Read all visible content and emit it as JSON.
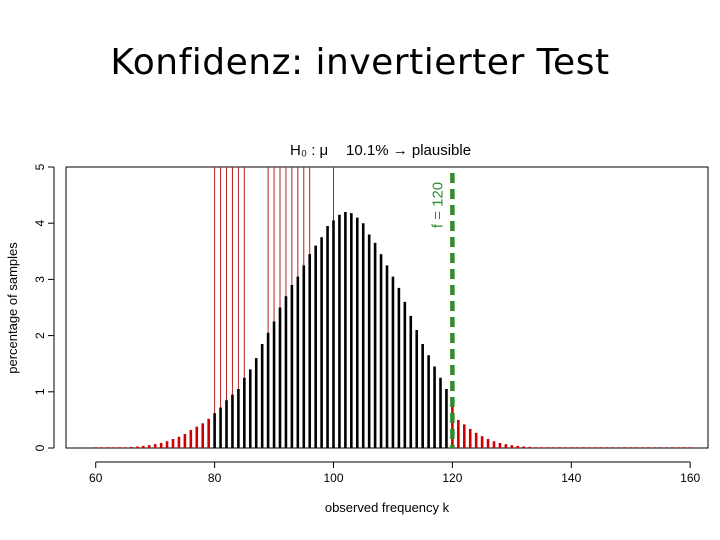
{
  "slide": {
    "title": "Konfidenz: invertierter Test"
  },
  "annotation": {
    "hypothesis": "H₀ : μ",
    "result": "10.1% → plausible"
  },
  "f_marker": {
    "label": "f = 120",
    "x": 120,
    "color": "#2e8b2e"
  },
  "chart_data": {
    "type": "bar",
    "xlabel": "observed frequency k",
    "ylabel": "percentage of samples",
    "xlim": [
      55,
      163
    ],
    "ylim": [
      0,
      5
    ],
    "x_ticks": [
      60,
      80,
      100,
      120,
      140,
      160
    ],
    "y_ticks": [
      0,
      1,
      2,
      3,
      4,
      5
    ],
    "grid": false,
    "colors": {
      "rejected": "#cc0000",
      "accepted": "#000000",
      "plausible_mu_line": "#b22222"
    },
    "acceptance_region": [
      80,
      120
    ],
    "series": [
      {
        "x": [
          60,
          61,
          62,
          63,
          64,
          65,
          66,
          67,
          68,
          69,
          70,
          71,
          72,
          73,
          74,
          75,
          76,
          77,
          78,
          79,
          80,
          81,
          82,
          83,
          84,
          85,
          86,
          87,
          88,
          89,
          90,
          91,
          92,
          93,
          94,
          95,
          96,
          97,
          98,
          99,
          100,
          101,
          102,
          103,
          104,
          105,
          106,
          107,
          108,
          109,
          110,
          111,
          112,
          113,
          114,
          115,
          116,
          117,
          118,
          119,
          120,
          121,
          122,
          123,
          124,
          125,
          126,
          127,
          128,
          129,
          130,
          131,
          132,
          133,
          134,
          135,
          136,
          137,
          138,
          139,
          140,
          141,
          142,
          143,
          144,
          145,
          146,
          147,
          148,
          149,
          150,
          151,
          152,
          153,
          154,
          155,
          156,
          157,
          158,
          159,
          160
        ],
        "values": [
          0.001,
          0.002,
          0.003,
          0.005,
          0.008,
          0.012,
          0.018,
          0.026,
          0.037,
          0.05,
          0.07,
          0.09,
          0.12,
          0.16,
          0.2,
          0.25,
          0.32,
          0.38,
          0.44,
          0.52,
          0.62,
          0.72,
          0.85,
          0.95,
          1.05,
          1.25,
          1.4,
          1.6,
          1.85,
          2.05,
          2.25,
          2.5,
          2.7,
          2.9,
          3.05,
          3.25,
          3.45,
          3.6,
          3.75,
          3.95,
          4.05,
          4.15,
          4.2,
          4.18,
          4.1,
          4.0,
          3.8,
          3.65,
          3.45,
          3.25,
          3.05,
          2.85,
          2.6,
          2.35,
          2.1,
          1.85,
          1.65,
          1.45,
          1.25,
          1.05,
          0.9,
          0.5,
          0.42,
          0.34,
          0.27,
          0.21,
          0.16,
          0.12,
          0.09,
          0.067,
          0.05,
          0.037,
          0.027,
          0.02,
          0.014,
          0.01,
          0.007,
          0.005,
          0.003,
          0.002,
          0.002,
          0.001,
          0.001,
          0.001,
          0.001,
          0.001,
          0.001,
          0.001,
          0.001,
          0.001,
          0.001,
          0.001,
          0.001,
          0.001,
          0.001,
          0.001,
          0.001,
          0.001,
          0.001,
          0.001,
          0.001
        ]
      }
    ],
    "plausible_mu_lines": [
      80,
      81,
      82,
      83,
      84,
      85,
      89,
      90,
      91,
      92,
      93,
      94,
      95,
      96,
      100
    ]
  }
}
